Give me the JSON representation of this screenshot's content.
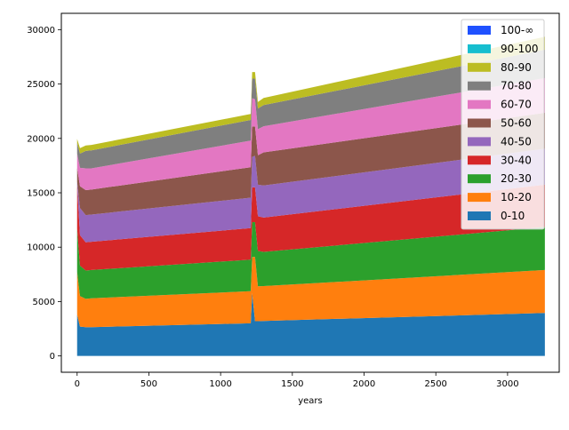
{
  "chart_data": {
    "type": "area",
    "title": "",
    "xlabel": "years",
    "ylabel": "",
    "xlim": [
      -110,
      3360
    ],
    "ylim": [
      -1500,
      31500
    ],
    "x_ticks": [
      0,
      500,
      1000,
      1500,
      2000,
      2500,
      3000
    ],
    "x_tick_labels": [
      "0",
      "500",
      "1000",
      "1500",
      "2000",
      "2500",
      "3000"
    ],
    "y_ticks": [
      0,
      5000,
      10000,
      15000,
      20000,
      25000,
      30000
    ],
    "y_tick_labels": [
      "0",
      "5000",
      "10000",
      "15000",
      "20000",
      "25000",
      "30000"
    ],
    "grid": false,
    "legend_position": "upper right",
    "x": [
      0,
      20,
      60,
      100,
      1210,
      1220,
      1240,
      1260,
      1300,
      3260
    ],
    "series": [
      {
        "name": "0-10",
        "color": "#1f77b4",
        "values": [
          3800,
          2700,
          2650,
          2650,
          3000,
          5800,
          3200,
          3200,
          3220,
          3950
        ]
      },
      {
        "name": "10-20",
        "color": "#ff7f0e",
        "values": [
          3900,
          2800,
          2600,
          2650,
          2950,
          3300,
          5900,
          3200,
          3200,
          3950
        ]
      },
      {
        "name": "20-30",
        "color": "#2ca02c",
        "values": [
          4000,
          2800,
          2600,
          2600,
          2900,
          3200,
          3200,
          3250,
          3150,
          3950
        ]
      },
      {
        "name": "30-40",
        "color": "#d62728",
        "values": [
          4000,
          2800,
          2600,
          2600,
          2900,
          3200,
          3200,
          3200,
          3150,
          3900
        ]
      },
      {
        "name": "40-50",
        "color": "#9467bd",
        "values": [
          300,
          2500,
          2500,
          2500,
          2800,
          2800,
          2900,
          2900,
          2950,
          3300
        ]
      },
      {
        "name": "50-60",
        "color": "#8c564b",
        "values": [
          1300,
          2000,
          2300,
          2300,
          2800,
          2800,
          2700,
          2700,
          3050,
          3300
        ]
      },
      {
        "name": "60-70",
        "color": "#e377c2",
        "values": [
          1300,
          1700,
          2000,
          1950,
          2450,
          2600,
          2500,
          2400,
          2400,
          3200
        ]
      },
      {
        "name": "70-80",
        "color": "#7f7f7f",
        "values": [
          1000,
          1300,
          1600,
          1650,
          1900,
          1800,
          1900,
          1900,
          1950,
          2600
        ]
      },
      {
        "name": "80-90",
        "color": "#bcbd22",
        "values": [
          350,
          500,
          500,
          500,
          550,
          600,
          600,
          600,
          650,
          1200
        ]
      },
      {
        "name": "90-100",
        "color": "#17becf",
        "values": [
          0,
          0,
          0,
          0,
          0,
          0,
          0,
          0,
          0,
          0
        ]
      },
      {
        "name": "100-∞",
        "color": "#1f51ff",
        "values": [
          0,
          0,
          0,
          0,
          0,
          0,
          0,
          0,
          0,
          0
        ]
      }
    ]
  }
}
